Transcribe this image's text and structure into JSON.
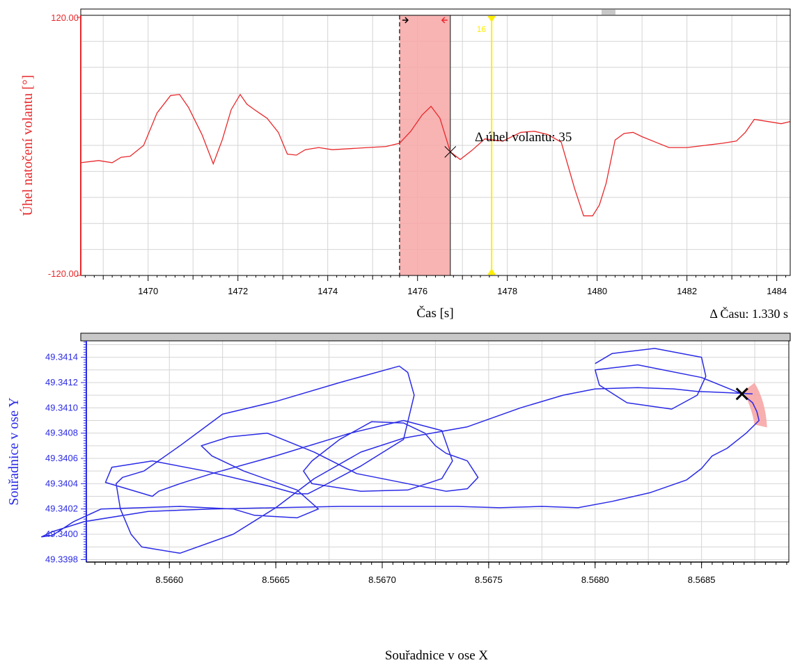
{
  "colors": {
    "top_trace": "#e8282b",
    "top_axis": "#e8282b",
    "highlight": "#f7a6a6",
    "cursor": "#ffee00",
    "bottom_trace": "#2a2ae6",
    "bottom_axis": "#2a2ae6",
    "grid": "#d4d4d4",
    "scrollbar": "#c8c8c8"
  },
  "chart_data": [
    {
      "type": "line",
      "ylabel": "Úhel natočení volantu [°]",
      "xlabel": "Čas [s]",
      "y_top_label": "120.00",
      "y_bottom_label": "-120.00",
      "ylim": [
        -120,
        120
      ],
      "xlim": [
        1468.5,
        1484.3
      ],
      "xticks": [
        1470,
        1472,
        1474,
        1476,
        1478,
        1480,
        1482,
        1484
      ],
      "tick_labels": [
        "1470",
        "1472",
        "1474",
        "1476",
        "1478",
        "1480",
        "1482",
        "1484"
      ],
      "grid": true,
      "annotation": "Δ úhel volantu: 35",
      "delta_label": "Δ Času: 1.330 s",
      "cursor_label": "16",
      "highlight_range": [
        1475.6,
        1476.73
      ],
      "yellow_cursor_x": 1477.65,
      "marker_point": [
        1476.73,
        -6
      ],
      "series": [
        {
          "x": [
            1468.5,
            1468.9,
            1469.2,
            1469.4,
            1469.6,
            1469.9,
            1470.2,
            1470.5,
            1470.7,
            1470.9,
            1471.2,
            1471.45,
            1471.65,
            1471.85,
            1472.05,
            1472.2,
            1472.4,
            1472.65,
            1472.9,
            1473.1,
            1473.3,
            1473.5,
            1473.8,
            1474.1,
            1474.5,
            1474.9,
            1475.3,
            1475.6,
            1475.85,
            1476.1,
            1476.3,
            1476.5,
            1476.73,
            1476.95,
            1477.2,
            1477.5,
            1477.9,
            1478.3,
            1478.6,
            1478.9,
            1479.2,
            1479.5,
            1479.7,
            1479.9,
            1480.05,
            1480.2,
            1480.4,
            1480.6,
            1480.8,
            1481.0,
            1481.3,
            1481.6,
            1482.0,
            1482.4,
            1482.8,
            1483.1,
            1483.3,
            1483.5,
            1483.8,
            1484.1,
            1484.3
          ],
          "y": [
            -16,
            -14,
            -16,
            -11,
            -10,
            0,
            30,
            46,
            47,
            35,
            10,
            -17,
            5,
            33,
            47,
            38,
            32,
            25,
            12,
            -8,
            -9,
            -4,
            -2,
            -4,
            -3,
            -2,
            -1,
            2,
            13,
            28,
            36,
            25,
            -6,
            -13,
            -5,
            6,
            4,
            12,
            13,
            10,
            3,
            -40,
            -65,
            -65,
            -55,
            -35,
            5,
            11,
            12,
            8,
            3,
            -2,
            -2,
            0,
            2,
            4,
            12,
            24,
            22,
            20,
            22
          ]
        }
      ]
    },
    {
      "type": "line",
      "ylabel": "Souřadnice v ose Y",
      "xlabel": "Souřadnice v ose X",
      "xlim": [
        8.56561,
        8.56891
      ],
      "ylim": [
        49.33978,
        49.34153
      ],
      "xticks": [
        8.566,
        8.5665,
        8.567,
        8.5675,
        8.568,
        8.5685
      ],
      "xtick_labels": [
        "8.5660",
        "8.5665",
        "8.5670",
        "8.5675",
        "8.5680",
        "8.5685"
      ],
      "yticks": [
        49.3398,
        49.34,
        49.3402,
        49.3404,
        49.3406,
        49.3408,
        49.341,
        49.3412,
        49.3414
      ],
      "ytick_labels": [
        "49.3398",
        "49.3400",
        "49.3402",
        "49.3404",
        "49.3406",
        "49.3408",
        "49.3410",
        "49.3412",
        "49.3414"
      ],
      "grid": true,
      "marker_point": [
        8.56869,
        49.34111
      ],
      "series": [
        {
          "x": [
            8.56869,
            8.56874,
            8.56876,
            8.56877,
            8.56871,
            8.56862,
            8.56855,
            8.5685,
            8.56843,
            8.56826,
            8.56808,
            8.56792,
            8.56775,
            8.56755,
            8.56735,
            8.5671,
            8.5668,
            8.5665,
            8.5662,
            8.5659,
            8.5656,
            8.56545,
            8.5654,
            8.56545,
            8.56555,
            8.56568,
            8.56605,
            8.5663,
            8.5664,
            8.5666,
            8.5667,
            8.5666,
            8.56635,
            8.5662,
            8.56615,
            8.56628,
            8.56646,
            8.56668,
            8.56688,
            8.56715,
            8.5673,
            8.5674,
            8.56745,
            8.5674,
            8.5673,
            8.56725,
            8.5672,
            8.5671,
            8.56695,
            8.5668,
            8.56667,
            8.56663,
            8.56667,
            8.5669,
            8.56712,
            8.56728,
            8.56733,
            8.56728,
            8.5671,
            8.56685,
            8.5665,
            8.5662,
            8.56605,
            8.56595,
            8.56592,
            8.56582,
            8.5657,
            8.56573,
            8.56592,
            8.56617,
            8.56647,
            8.5666,
            8.56665,
            8.56672,
            8.5669,
            8.5671,
            8.56715,
            8.56712,
            8.56708,
            8.5668,
            8.5665,
            8.56625,
            8.56605,
            8.56588,
            8.56578,
            8.56575,
            8.56577,
            8.56582,
            8.56587,
            8.56605,
            8.5663,
            8.5665,
            8.56668,
            8.5669,
            8.5671,
            8.5674,
            8.56765,
            8.56785,
            8.568,
            8.5682,
            8.56837,
            8.56848,
            8.56862,
            8.56874
          ],
          "y": [
            49.34111,
            49.34104,
            49.34097,
            49.3409,
            49.3408,
            49.34068,
            49.34062,
            49.34052,
            49.34043,
            49.34033,
            49.34026,
            49.34021,
            49.34022,
            49.34021,
            49.34022,
            49.34022,
            49.34022,
            49.34021,
            49.3402,
            49.34018,
            49.3401,
            49.34002,
            49.33998,
            49.33999,
            49.3401,
            49.3402,
            49.34022,
            49.3402,
            49.34015,
            49.34013,
            49.3402,
            49.34035,
            49.3405,
            49.34062,
            49.3407,
            49.34077,
            49.3408,
            49.34065,
            49.34048,
            49.34039,
            49.34034,
            49.34036,
            49.34045,
            49.34058,
            49.34064,
            49.3407,
            49.3408,
            49.34088,
            49.34089,
            49.34075,
            49.34058,
            49.3405,
            49.3404,
            49.34034,
            49.34035,
            49.34044,
            49.34058,
            49.34082,
            49.3409,
            49.3408,
            49.34062,
            49.34048,
            49.3404,
            49.34034,
            49.3403,
            49.34035,
            49.34041,
            49.34053,
            49.34058,
            49.3405,
            49.34038,
            49.34032,
            49.34032,
            49.34038,
            49.34054,
            49.34075,
            49.3411,
            49.34128,
            49.34133,
            49.3412,
            49.34105,
            49.34095,
            49.3407,
            49.3405,
            49.34045,
            49.3404,
            49.3402,
            49.34,
            49.3399,
            49.33985,
            49.34,
            49.34021,
            49.34044,
            49.34065,
            49.34076,
            49.34085,
            49.341,
            49.3411,
            49.34115,
            49.34116,
            49.34115,
            49.34113,
            49.34112,
            49.34111
          ]
        },
        {
          "x": [
            8.568,
            8.56808,
            8.56828,
            8.5685,
            8.56852,
            8.56848,
            8.56836,
            8.56815,
            8.56802,
            8.568,
            8.5682,
            8.5685,
            8.56869
          ],
          "y": [
            49.34135,
            49.34143,
            49.34147,
            49.3414,
            49.34125,
            49.3411,
            49.34099,
            49.34104,
            49.34118,
            49.3413,
            49.34134,
            49.34124,
            49.34111
          ]
        }
      ]
    }
  ]
}
